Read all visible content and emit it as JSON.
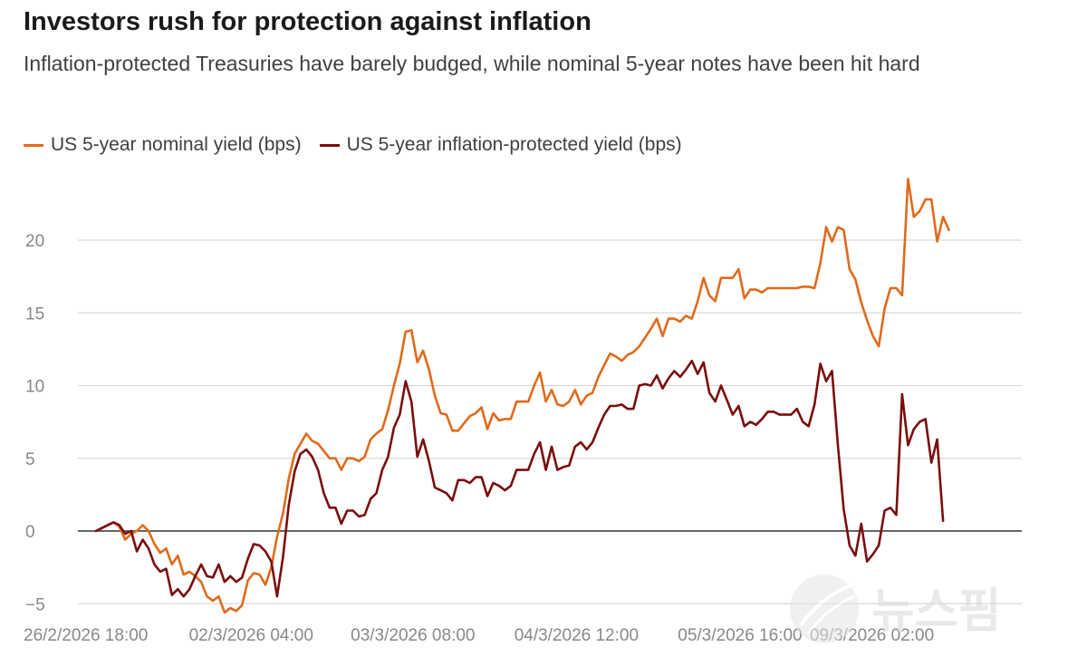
{
  "title": "Investors rush for protection against inflation",
  "subtitle": "Inflation-protected Treasuries have barely budged, while nominal 5-year notes have been hit hard",
  "watermark_text": "뉴스핌",
  "colors": {
    "nominal": "#e06a1b",
    "tips": "#7a0e0e",
    "grid": "#d9d9d9",
    "zero": "#333333"
  },
  "chart_data": {
    "type": "line",
    "title": "Investors rush for protection against inflation",
    "subtitle": "Inflation-protected Treasuries have barely budged, while nominal 5-year notes have been hit hard",
    "xlabel": "",
    "ylabel": "",
    "ylim": [
      -5.6,
      24.2
    ],
    "yticks": [
      -5,
      0,
      5,
      10,
      15,
      20
    ],
    "ytick_labels": [
      "−5",
      "0",
      "5",
      "10",
      "15",
      "20"
    ],
    "xlim": [
      0,
      156
    ],
    "xticks": [
      0,
      28,
      56,
      84,
      112,
      140
    ],
    "xtick_labels": [
      "26/2/2026 18:00",
      "02/3/2026 04:00",
      "03/3/2026 08:00",
      "04/3/2026 12:00",
      "05/3/2026 16:00",
      "09/3/2026 02:00"
    ],
    "grid": true,
    "legend_position": "top-left",
    "series": [
      {
        "name": "US 5-year nominal yield (bps)",
        "color": "#e06a1b",
        "values": [
          0,
          0.2,
          0.4,
          0.6,
          0.3,
          -0.6,
          -0.2,
          0,
          0.4,
          0,
          -0.9,
          -1.5,
          -1.2,
          -2.3,
          -1.7,
          -3,
          -2.8,
          -3.1,
          -3.5,
          -4.5,
          -4.8,
          -4.5,
          -5.6,
          -5.3,
          -5.5,
          -5.1,
          -3.4,
          -2.9,
          -3,
          -3.7,
          -2.5,
          -0.4,
          1.2,
          3.6,
          5.3,
          6,
          6.7,
          6.2,
          6,
          5.5,
          5,
          5,
          4.2,
          5,
          5,
          4.8,
          5.1,
          6.3,
          6.7,
          7,
          8.3,
          10,
          11.5,
          13.7,
          13.8,
          11.6,
          12.4,
          11.1,
          9.3,
          8.1,
          8,
          6.9,
          6.9,
          7.4,
          7.9,
          8.1,
          8.5,
          7,
          8.1,
          7.6,
          7.7,
          7.7,
          8.9,
          8.9,
          8.9,
          10,
          10.9,
          8.9,
          9.7,
          8.7,
          8.6,
          8.9,
          9.7,
          8.7,
          9.3,
          9.5,
          10.6,
          11.4,
          12.2,
          12,
          11.7,
          12.1,
          12.3,
          12.7,
          13.3,
          13.9,
          14.6,
          13.4,
          14.6,
          14.6,
          14.4,
          14.8,
          14.6,
          15.8,
          17.4,
          16.2,
          15.8,
          17.4,
          17.4,
          17.4,
          18,
          16,
          16.6,
          16.6,
          16.4,
          16.7,
          16.7,
          16.7,
          16.7,
          16.7,
          16.7,
          16.8,
          16.8,
          16.7,
          18.4,
          20.9,
          19.9,
          20.9,
          20.7,
          18,
          17.3,
          15.7,
          14.5,
          13.4,
          12.7,
          15.3,
          16.7,
          16.7,
          16.2,
          24.2,
          21.6,
          22,
          22.8,
          22.8,
          19.9,
          21.6,
          20.7
        ]
      },
      {
        "name": "US 5-year inflation-protected yield (bps)",
        "color": "#7a0e0e",
        "values": [
          0,
          0.2,
          0.4,
          0.6,
          0.4,
          -0.2,
          0,
          -1.4,
          -0.6,
          -1.2,
          -2.3,
          -2.8,
          -2.6,
          -4.4,
          -4,
          -4.5,
          -4,
          -3.1,
          -2.3,
          -3.1,
          -3.2,
          -2.3,
          -3.5,
          -3.1,
          -3.5,
          -3.2,
          -1.9,
          -0.9,
          -1,
          -1.4,
          -2.1,
          -4.5,
          -1.8,
          1.8,
          4.1,
          5.3,
          5.6,
          5.1,
          4.2,
          2.6,
          1.6,
          1.6,
          0.5,
          1.4,
          1.4,
          1,
          1.1,
          2.2,
          2.6,
          4.2,
          5.1,
          7.1,
          8,
          10.3,
          8.9,
          5.1,
          6.3,
          4.8,
          3,
          2.8,
          2.6,
          2.1,
          3.5,
          3.5,
          3.3,
          3.7,
          3.7,
          2.4,
          3.3,
          3.1,
          2.8,
          3.1,
          4.2,
          4.2,
          4.2,
          5.3,
          6.1,
          4.2,
          5.8,
          4.2,
          4.4,
          4.5,
          5.8,
          6.1,
          5.6,
          6.1,
          7.1,
          8,
          8.6,
          8.6,
          8.7,
          8.4,
          8.4,
          10,
          10.1,
          10,
          10.7,
          9.8,
          10.5,
          11,
          10.6,
          11.1,
          11.7,
          10.8,
          11.6,
          9.5,
          8.9,
          10,
          9,
          8,
          8.6,
          7.2,
          7.5,
          7.3,
          7.7,
          8.2,
          8.2,
          8,
          8,
          8,
          8.4,
          7.5,
          7.2,
          8.7,
          11.5,
          10.3,
          11,
          5.9,
          1.5,
          -1,
          -1.7,
          0.5,
          -2.1,
          -1.6,
          -1,
          1.4,
          1.6,
          1.1,
          9.4,
          5.9,
          7,
          7.5,
          7.7,
          4.7,
          6.3,
          0.7
        ]
      }
    ]
  }
}
